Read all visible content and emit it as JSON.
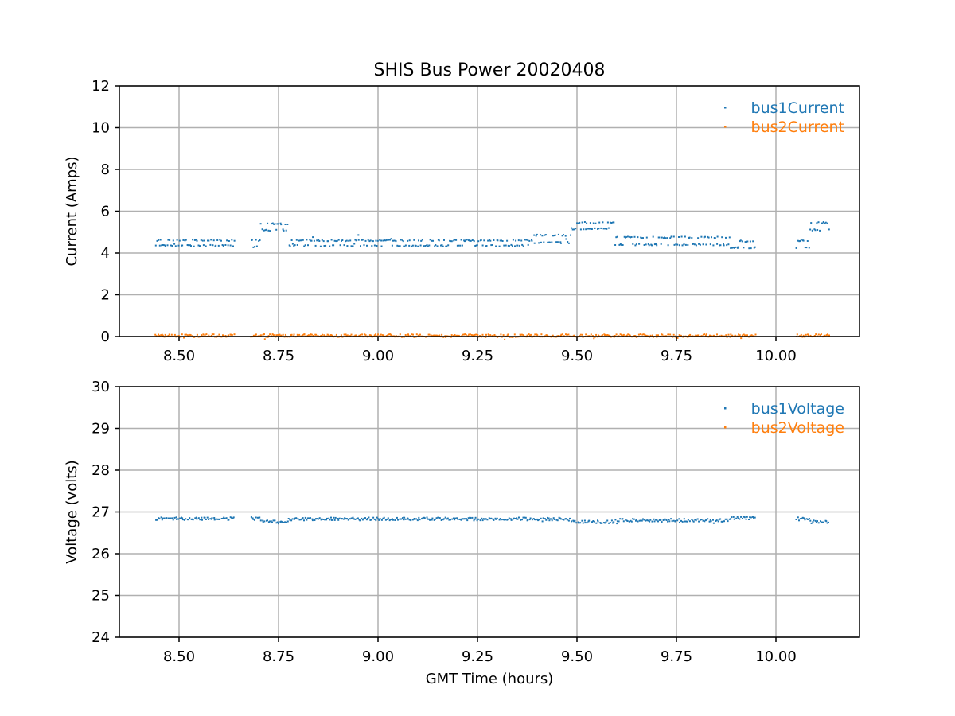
{
  "title": "SHIS Bus Power 20020408",
  "colors": {
    "series1": "#1f77b4",
    "series2": "#ff7f0e"
  },
  "chart_data": [
    {
      "type": "scatter",
      "title": "SHIS Bus Power 20020408",
      "xlabel": "",
      "ylabel": "Current (Amps)",
      "xlim": [
        8.35,
        10.21
      ],
      "ylim": [
        0,
        12
      ],
      "xticks": [
        8.5,
        8.75,
        9.0,
        9.25,
        9.5,
        9.75,
        10.0
      ],
      "xtick_labels": [
        "8.50",
        "8.75",
        "9.00",
        "9.25",
        "9.50",
        "9.75",
        "10.00"
      ],
      "yticks": [
        0,
        2,
        4,
        6,
        8,
        10,
        12
      ],
      "ytick_labels": [
        "0",
        "2",
        "4",
        "6",
        "8",
        "10",
        "12"
      ],
      "grid": true,
      "legend_position": "top-right",
      "series": [
        {
          "name": "bus1Current",
          "color": "#1f77b4",
          "segments": [
            {
              "x_range": [
                8.44,
                8.64
              ],
              "levels": [
                4.35,
                4.6
              ]
            },
            {
              "x_range": [
                8.68,
                8.705
              ],
              "levels": [
                4.3,
                4.6
              ]
            },
            {
              "x_range": [
                8.705,
                8.775
              ],
              "levels": [
                5.1,
                5.4
              ]
            },
            {
              "x_range": [
                8.775,
                9.39
              ],
              "levels": [
                4.35,
                4.6
              ]
            },
            {
              "x_range": [
                9.39,
                9.485
              ],
              "levels": [
                4.5,
                4.85
              ]
            },
            {
              "x_range": [
                9.485,
                9.595
              ],
              "levels": [
                5.15,
                5.45
              ]
            },
            {
              "x_range": [
                9.595,
                9.885
              ],
              "levels": [
                4.4,
                4.75
              ]
            },
            {
              "x_range": [
                9.885,
                9.95
              ],
              "levels": [
                4.25,
                4.55
              ]
            },
            {
              "x_range": [
                10.05,
                10.085
              ],
              "levels": [
                4.25,
                4.6
              ]
            },
            {
              "x_range": [
                10.085,
                10.135
              ],
              "levels": [
                5.1,
                5.45
              ]
            }
          ]
        },
        {
          "name": "bus2Current",
          "color": "#ff7f0e",
          "segments": [
            {
              "x_range": [
                8.44,
                8.64
              ],
              "levels": [
                0.04,
                0.04
              ]
            },
            {
              "x_range": [
                8.68,
                9.95
              ],
              "levels": [
                0.04,
                0.04
              ]
            },
            {
              "x_range": [
                10.05,
                10.135
              ],
              "levels": [
                0.04,
                0.04
              ]
            }
          ]
        }
      ]
    },
    {
      "type": "scatter",
      "title": "",
      "xlabel": "GMT Time (hours)",
      "ylabel": "Voltage (volts)",
      "xlim": [
        8.35,
        10.21
      ],
      "ylim": [
        24,
        30
      ],
      "xticks": [
        8.5,
        8.75,
        9.0,
        9.25,
        9.5,
        9.75,
        10.0
      ],
      "xtick_labels": [
        "8.50",
        "8.75",
        "9.00",
        "9.25",
        "9.50",
        "9.75",
        "10.00"
      ],
      "yticks": [
        24,
        25,
        26,
        27,
        28,
        29,
        30
      ],
      "ytick_labels": [
        "24",
        "25",
        "26",
        "27",
        "28",
        "29",
        "30"
      ],
      "grid": true,
      "legend_position": "top-right",
      "series": [
        {
          "name": "bus1Voltage",
          "color": "#1f77b4",
          "segments": [
            {
              "x_range": [
                8.44,
                8.64
              ],
              "levels": [
                26.84,
                26.84
              ]
            },
            {
              "x_range": [
                8.68,
                8.705
              ],
              "levels": [
                26.84,
                26.84
              ]
            },
            {
              "x_range": [
                8.705,
                8.775
              ],
              "levels": [
                26.76,
                26.76
              ]
            },
            {
              "x_range": [
                8.775,
                9.485
              ],
              "levels": [
                26.83,
                26.83
              ]
            },
            {
              "x_range": [
                9.485,
                9.595
              ],
              "levels": [
                26.76,
                26.76
              ]
            },
            {
              "x_range": [
                9.595,
                9.885
              ],
              "levels": [
                26.8,
                26.8
              ]
            },
            {
              "x_range": [
                9.885,
                9.95
              ],
              "levels": [
                26.85,
                26.85
              ]
            },
            {
              "x_range": [
                10.05,
                10.085
              ],
              "levels": [
                26.84,
                26.84
              ]
            },
            {
              "x_range": [
                10.085,
                10.135
              ],
              "levels": [
                26.76,
                26.76
              ]
            }
          ]
        },
        {
          "name": "bus2Voltage",
          "color": "#ff7f0e",
          "segments": []
        }
      ]
    }
  ]
}
